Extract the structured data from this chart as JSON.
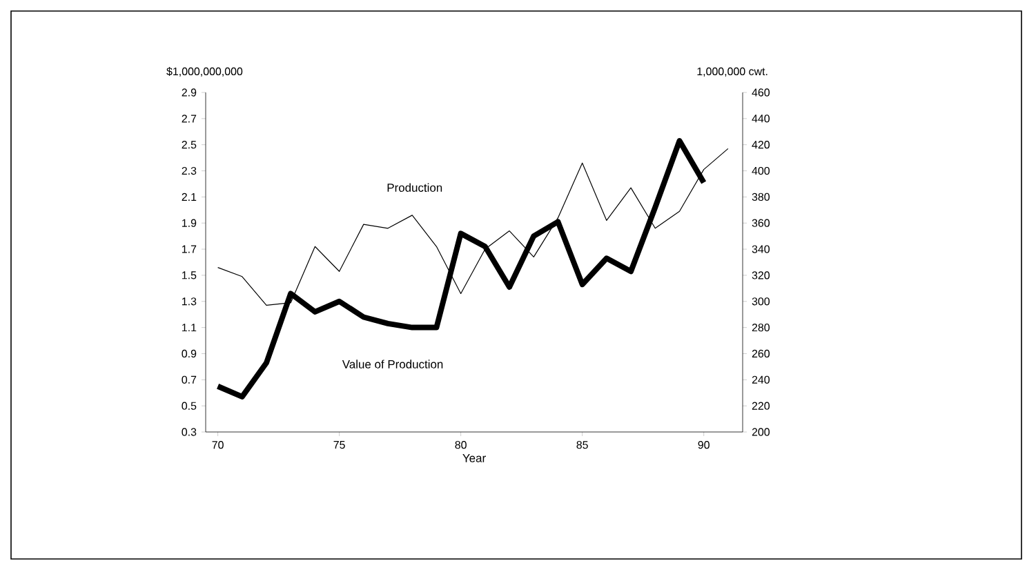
{
  "chart_data": {
    "type": "line",
    "xlabel": "Year",
    "ylabel": "$1,000,000,000",
    "y2label": "1,000,000 cwt.",
    "x": [
      70,
      71,
      72,
      73,
      74,
      75,
      76,
      77,
      78,
      79,
      80,
      81,
      82,
      83,
      84,
      85,
      86,
      87,
      88,
      89,
      90,
      91
    ],
    "series": [
      {
        "name": "Production",
        "color": "#000000",
        "axis": "y2",
        "values": [
          326,
          319,
          297,
          299,
          342,
          323,
          359,
          356,
          366,
          342,
          306,
          340,
          354,
          334,
          364,
          406,
          362,
          387,
          356,
          369,
          401,
          417
        ]
      },
      {
        "name": "Value of Production",
        "color": "#000000",
        "values": [
          0.65,
          0.57,
          0.83,
          1.36,
          1.22,
          1.3,
          1.18,
          1.13,
          1.1,
          1.1,
          1.82,
          1.72,
          1.41,
          1.8,
          1.91,
          1.43,
          1.63,
          1.53,
          2.02,
          2.53,
          2.21,
          null
        ]
      }
    ],
    "xlim": [
      69.5,
      91.6
    ],
    "xticks": [
      70,
      75,
      80,
      85,
      90
    ],
    "ylim": [
      0.3,
      2.9
    ],
    "yticks": [
      0.3,
      0.5,
      0.7,
      0.9,
      1.1,
      1.3,
      1.5,
      1.7,
      1.9,
      2.1,
      2.3,
      2.5,
      2.7,
      2.9
    ],
    "y2lim": [
      200,
      460
    ],
    "y2ticks": [
      200,
      220,
      240,
      260,
      280,
      300,
      320,
      340,
      360,
      380,
      400,
      420,
      440,
      460
    ],
    "grid": false,
    "legend": false,
    "marker": "none",
    "line_style": "solid"
  }
}
